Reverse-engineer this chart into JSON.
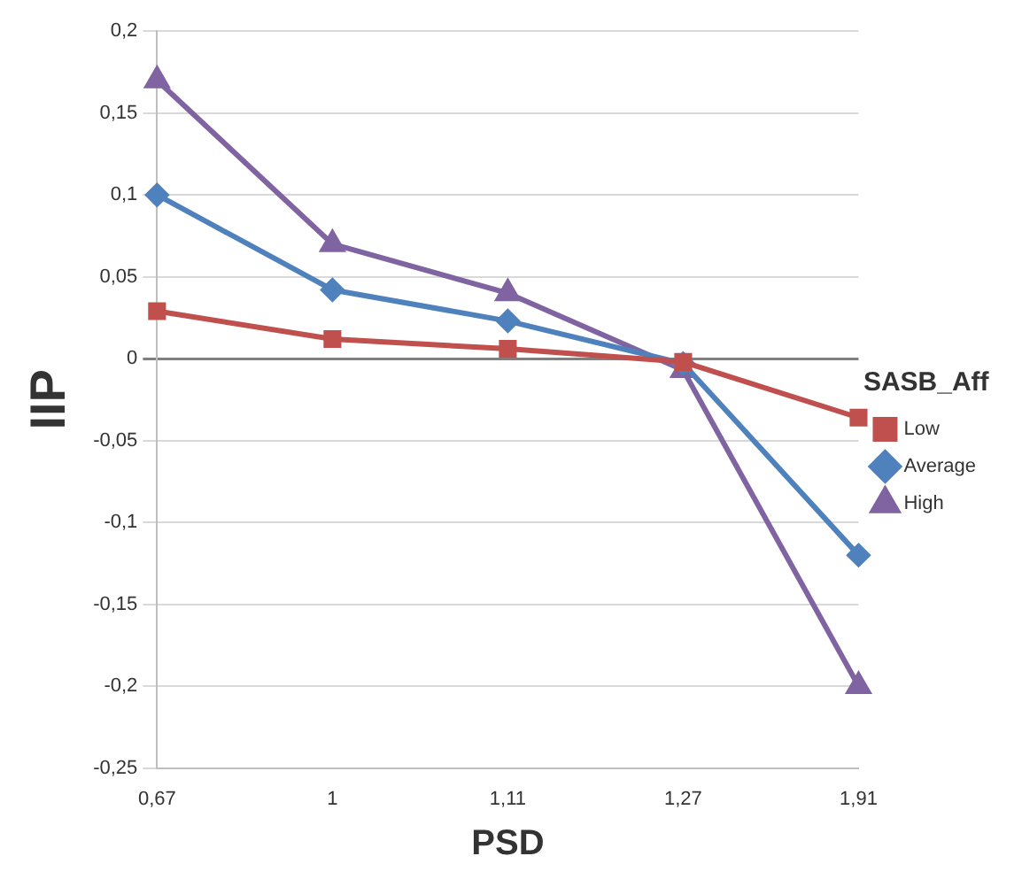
{
  "chart_data": {
    "type": "line",
    "xlabel": "PSD",
    "ylabel": "IIP",
    "legend_title": "SASB_Aff",
    "categories": [
      "0,67",
      "1",
      "1,11",
      "1,27",
      "1,91"
    ],
    "series": [
      {
        "name": "Low",
        "color": "#c0504d",
        "marker": "square",
        "values": [
          0.029,
          0.012,
          0.006,
          -0.002,
          -0.036
        ]
      },
      {
        "name": "Average",
        "color": "#4f81bd",
        "marker": "diamond",
        "values": [
          0.1,
          0.042,
          0.023,
          -0.003,
          -0.12
        ]
      },
      {
        "name": "High",
        "color": "#8064a2",
        "marker": "triangle",
        "values": [
          0.17,
          0.07,
          0.04,
          -0.007,
          -0.2
        ]
      }
    ],
    "ylim": [
      -0.25,
      0.2
    ],
    "yticks": [
      {
        "value": -0.25,
        "label": "-0,25"
      },
      {
        "value": -0.2,
        "label": "-0,2"
      },
      {
        "value": -0.15,
        "label": "-0,15"
      },
      {
        "value": -0.1,
        "label": "-0,1"
      },
      {
        "value": -0.05,
        "label": "-0,05"
      },
      0,
      {
        "value": 0.05,
        "label": "0,05"
      },
      {
        "value": 0.1,
        "label": "0,1"
      },
      {
        "value": 0.15,
        "label": "0,15"
      },
      {
        "value": 0.2,
        "label": "0,2"
      }
    ],
    "grid": "y",
    "legend": "right",
    "line_style": "solid"
  }
}
